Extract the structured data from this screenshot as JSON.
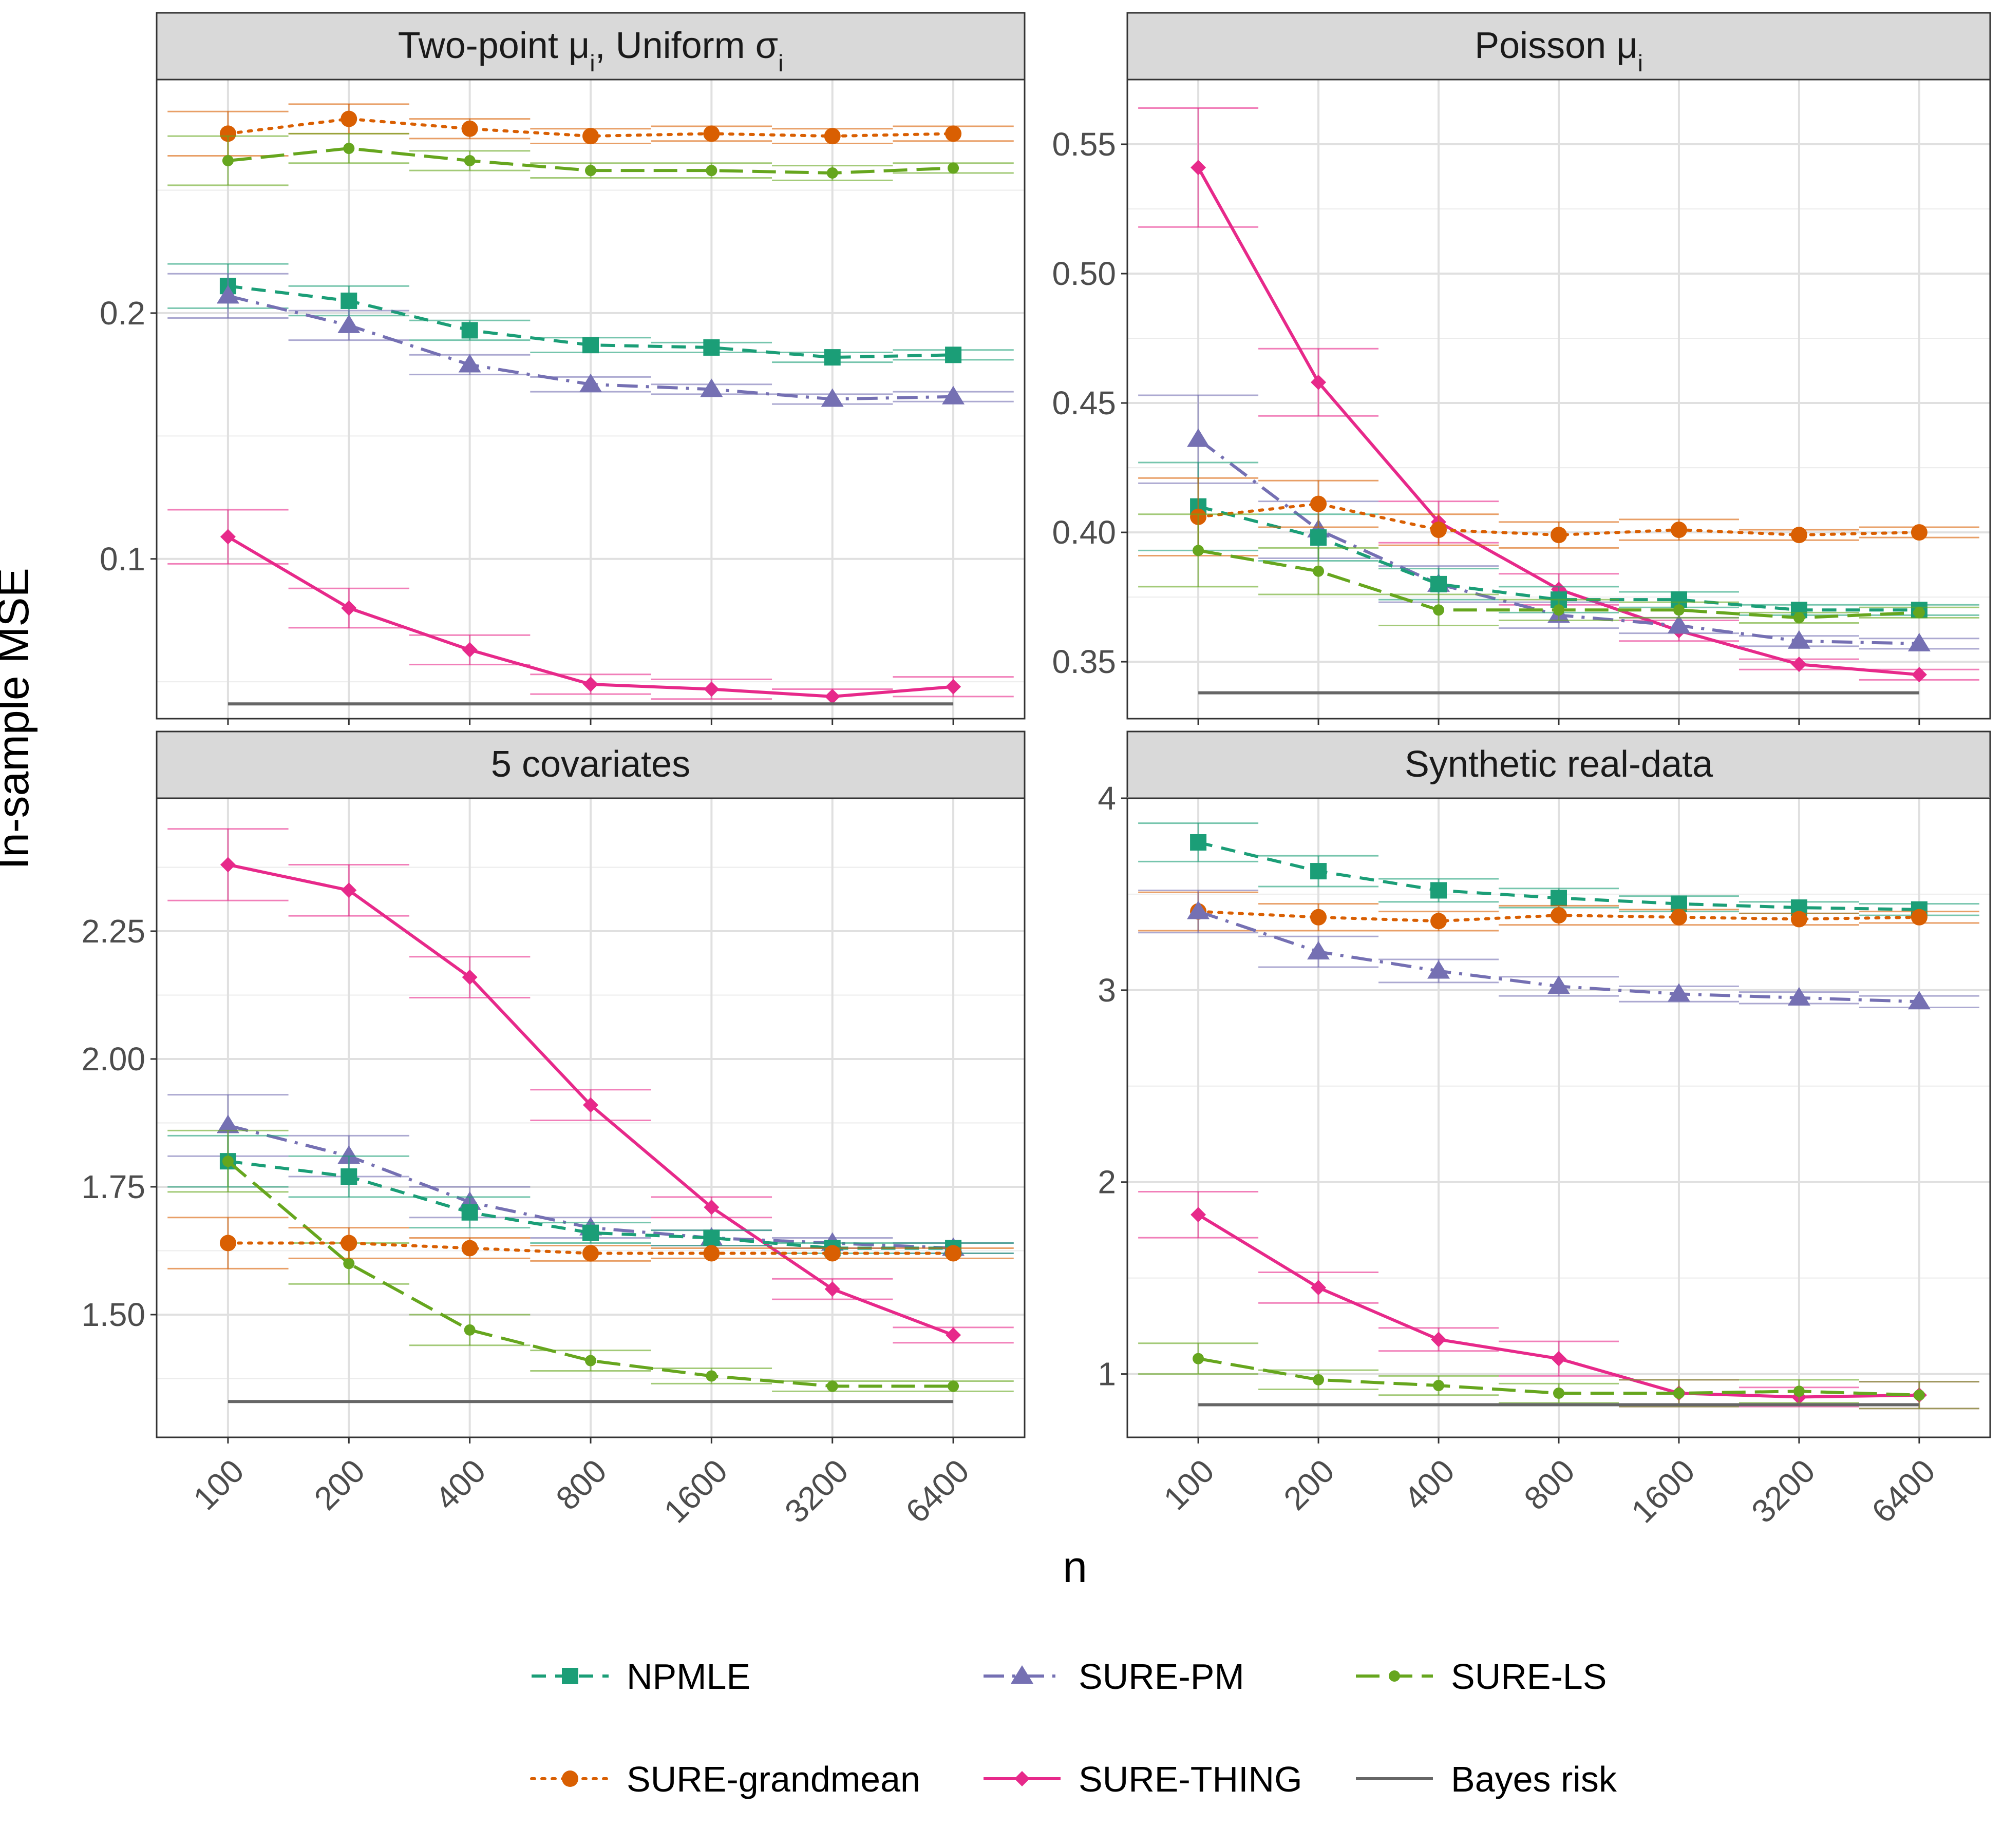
{
  "chart_data": {
    "type": "line",
    "x_label": "n",
    "y_label": "In-sample MSE",
    "x_categories": [
      "100",
      "200",
      "400",
      "800",
      "1600",
      "3200",
      "6400"
    ],
    "legend": {
      "placement": "bottom",
      "entries": [
        {
          "key": "npmle",
          "label": "NPMLE"
        },
        {
          "key": "sure_pm",
          "label": "SURE-PM"
        },
        {
          "key": "sure_ls",
          "label": "SURE-LS"
        },
        {
          "key": "sure_grandmean",
          "label": "SURE-grandmean"
        },
        {
          "key": "sure_thing",
          "label": "SURE-THING"
        },
        {
          "key": "bayes",
          "label": "Bayes risk"
        }
      ]
    },
    "series_styles": {
      "npmle": {
        "color": "#1B9E77",
        "marker": "square",
        "dash": "dashed"
      },
      "sure_pm": {
        "color": "#7570B3",
        "marker": "triangle",
        "dash": "dotdash"
      },
      "sure_ls": {
        "color": "#66A61E",
        "marker": "circle-small",
        "dash": "longdash"
      },
      "sure_grandmean": {
        "color": "#D95F02",
        "marker": "circle",
        "dash": "dotted"
      },
      "sure_thing": {
        "color": "#E7298A",
        "marker": "diamond",
        "dash": "solid"
      },
      "bayes": {
        "color": "#666666",
        "marker": "none",
        "dash": "solid"
      }
    },
    "panels": [
      {
        "id": "p1",
        "title_main": "Two-point μ",
        "title_sub1": "i",
        "title_mid": ", Uniform σ",
        "title_sub2": "i",
        "ylim": [
          0.035,
          0.295
        ],
        "yticks": [
          0.1,
          0.2
        ],
        "ytick_labels": [
          "0.1",
          "0.2"
        ],
        "series": [
          {
            "key": "sure_grandmean",
            "y": [
              0.273,
              0.279,
              0.275,
              0.272,
              0.273,
              0.272,
              0.273
            ],
            "err": [
              0.009,
              0.006,
              0.004,
              0.003,
              0.003,
              0.003,
              0.003
            ]
          },
          {
            "key": "sure_ls",
            "y": [
              0.262,
              0.267,
              0.262,
              0.258,
              0.258,
              0.257,
              0.259
            ],
            "err": [
              0.01,
              0.006,
              0.004,
              0.003,
              0.003,
              0.003,
              0.002
            ]
          },
          {
            "key": "npmle",
            "y": [
              0.211,
              0.205,
              0.193,
              0.187,
              0.186,
              0.182,
              0.183
            ],
            "err": [
              0.009,
              0.006,
              0.004,
              0.003,
              0.002,
              0.002,
              0.002
            ]
          },
          {
            "key": "sure_pm",
            "y": [
              0.207,
              0.195,
              0.179,
              0.171,
              0.169,
              0.165,
              0.166
            ],
            "err": [
              0.009,
              0.006,
              0.004,
              0.003,
              0.002,
              0.002,
              0.002
            ]
          },
          {
            "key": "sure_thing",
            "y": [
              0.109,
              0.08,
              0.063,
              0.049,
              0.047,
              0.044,
              0.048
            ],
            "err": [
              0.011,
              0.008,
              0.006,
              0.004,
              0.004,
              0.003,
              0.004
            ]
          },
          {
            "key": "bayes",
            "y": [
              0.041,
              0.041,
              0.041,
              0.041,
              0.041,
              0.041,
              0.041
            ],
            "err": null
          }
        ]
      },
      {
        "id": "p2",
        "title_main": "Poisson μ",
        "title_sub1": "i",
        "title_mid": "",
        "title_sub2": "",
        "ylim": [
          0.328,
          0.575
        ],
        "yticks": [
          0.35,
          0.4,
          0.45,
          0.5,
          0.55
        ],
        "ytick_labels": [
          "0.35",
          "0.40",
          "0.45",
          "0.50",
          "0.55"
        ],
        "series": [
          {
            "key": "sure_thing",
            "y": [
              0.541,
              0.458,
              0.404,
              0.378,
              0.362,
              0.349,
              0.345
            ],
            "err": [
              0.023,
              0.013,
              0.008,
              0.006,
              0.004,
              0.002,
              0.002
            ]
          },
          {
            "key": "sure_pm",
            "y": [
              0.436,
              0.401,
              0.38,
              0.368,
              0.364,
              0.358,
              0.357
            ],
            "err": [
              0.017,
              0.011,
              0.007,
              0.005,
              0.003,
              0.002,
              0.002
            ]
          },
          {
            "key": "npmle",
            "y": [
              0.41,
              0.398,
              0.38,
              0.374,
              0.374,
              0.37,
              0.37
            ],
            "err": [
              0.017,
              0.009,
              0.006,
              0.005,
              0.003,
              0.002,
              0.002
            ]
          },
          {
            "key": "sure_grandmean",
            "y": [
              0.406,
              0.411,
              0.401,
              0.399,
              0.401,
              0.399,
              0.4
            ],
            "err": [
              0.015,
              0.009,
              0.006,
              0.005,
              0.004,
              0.002,
              0.002
            ]
          },
          {
            "key": "sure_ls",
            "y": [
              0.393,
              0.385,
              0.37,
              0.37,
              0.37,
              0.367,
              0.369
            ],
            "err": [
              0.014,
              0.009,
              0.006,
              0.004,
              0.003,
              0.002,
              0.002
            ]
          },
          {
            "key": "bayes",
            "y": [
              0.338,
              0.338,
              0.338,
              0.338,
              0.338,
              0.338,
              0.338
            ],
            "err": null
          }
        ]
      },
      {
        "id": "p3",
        "title_main": "5 covariates",
        "title_sub1": "",
        "title_mid": "",
        "title_sub2": "",
        "ylim": [
          1.26,
          2.51
        ],
        "yticks": [
          1.5,
          1.75,
          2.0,
          2.25
        ],
        "ytick_labels": [
          "1.50",
          "1.75",
          "2.00",
          "2.25"
        ],
        "series": [
          {
            "key": "sure_thing",
            "y": [
              2.38,
              2.33,
              2.16,
              1.91,
              1.71,
              1.55,
              1.46
            ],
            "err": [
              0.07,
              0.05,
              0.04,
              0.03,
              0.02,
              0.02,
              0.015
            ]
          },
          {
            "key": "sure_pm",
            "y": [
              1.87,
              1.81,
              1.72,
              1.67,
              1.65,
              1.64,
              1.63
            ],
            "err": [
              0.06,
              0.04,
              0.03,
              0.02,
              0.015,
              0.01,
              0.01
            ]
          },
          {
            "key": "npmle",
            "y": [
              1.8,
              1.77,
              1.7,
              1.66,
              1.65,
              1.63,
              1.63
            ],
            "err": [
              0.05,
              0.04,
              0.03,
              0.02,
              0.015,
              0.01,
              0.01
            ]
          },
          {
            "key": "sure_ls",
            "y": [
              1.8,
              1.6,
              1.47,
              1.41,
              1.38,
              1.36,
              1.36
            ],
            "err": [
              0.06,
              0.04,
              0.03,
              0.02,
              0.015,
              0.01,
              0.01
            ]
          },
          {
            "key": "sure_grandmean",
            "y": [
              1.64,
              1.64,
              1.63,
              1.62,
              1.62,
              1.62,
              1.62
            ],
            "err": [
              0.05,
              0.03,
              0.02,
              0.015,
              0.01,
              0.01,
              0.01
            ]
          },
          {
            "key": "bayes",
            "y": [
              1.33,
              1.33,
              1.33,
              1.33,
              1.33,
              1.33,
              1.33
            ],
            "err": null
          }
        ]
      },
      {
        "id": "p4",
        "title_main": "Synthetic real-data",
        "title_sub1": "",
        "title_mid": "",
        "title_sub2": "",
        "ylim": [
          0.67,
          4.0
        ],
        "yticks": [
          1,
          2,
          3,
          4
        ],
        "ytick_labels": [
          "1",
          "2",
          "3",
          "4"
        ],
        "series": [
          {
            "key": "npmle",
            "y": [
              3.77,
              3.62,
              3.52,
              3.48,
              3.45,
              3.43,
              3.42
            ],
            "err": [
              0.1,
              0.08,
              0.06,
              0.05,
              0.04,
              0.03,
              0.03
            ]
          },
          {
            "key": "sure_grandmean",
            "y": [
              3.41,
              3.38,
              3.36,
              3.39,
              3.38,
              3.37,
              3.38
            ],
            "err": [
              0.1,
              0.07,
              0.05,
              0.05,
              0.04,
              0.03,
              0.03
            ]
          },
          {
            "key": "sure_pm",
            "y": [
              3.41,
              3.2,
              3.1,
              3.02,
              2.98,
              2.96,
              2.94
            ],
            "err": [
              0.11,
              0.08,
              0.06,
              0.05,
              0.04,
              0.03,
              0.03
            ]
          },
          {
            "key": "sure_thing",
            "y": [
              1.83,
              1.45,
              1.18,
              1.08,
              0.9,
              0.88,
              0.89
            ],
            "err": [
              0.12,
              0.08,
              0.06,
              0.09,
              0.07,
              0.05,
              0.07
            ]
          },
          {
            "key": "sure_ls",
            "y": [
              1.08,
              0.97,
              0.94,
              0.9,
              0.9,
              0.91,
              0.89
            ],
            "err": [
              0.08,
              0.05,
              0.05,
              0.05,
              0.07,
              0.06,
              0.07
            ]
          },
          {
            "key": "bayes",
            "y": [
              0.84,
              0.84,
              0.84,
              0.84,
              0.84,
              0.84,
              0.84
            ],
            "err": null
          }
        ]
      }
    ]
  }
}
